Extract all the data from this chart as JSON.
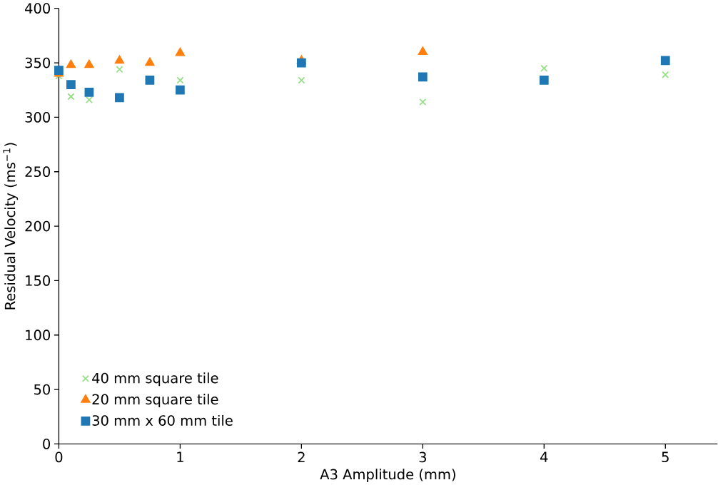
{
  "chart_data": {
    "type": "scatter",
    "xlabel": "A3 Amplitude (mm)",
    "ylabel": "Residual Velocity (ms$^{−1}$)",
    "xlim": [
      0,
      5.43
    ],
    "ylim": [
      0,
      400
    ],
    "xticks": [
      0,
      1,
      2,
      3,
      4,
      5
    ],
    "yticks": [
      0,
      50,
      100,
      150,
      200,
      250,
      300,
      350,
      400
    ],
    "legend": "bottom left",
    "grid": false,
    "series": [
      {
        "name": "40 mm square tile",
        "color": "#98df8a",
        "marker": "cross",
        "x": [
          0,
          0.1,
          0.25,
          0.5,
          1,
          2,
          3,
          4,
          5
        ],
        "values": [
          338,
          319,
          316,
          344,
          334,
          334,
          314,
          345,
          339
        ]
      },
      {
        "name": "20 mm square tile",
        "color": "#ff7f0e",
        "marker": "triangle",
        "x": [
          0,
          0.1,
          0.25,
          0.5,
          0.75,
          1,
          2,
          3
        ],
        "values": [
          340,
          348,
          348,
          352,
          350,
          359,
          352,
          360
        ]
      },
      {
        "name": "30 mm x 60 mm tile",
        "color": "#1f77b4",
        "marker": "square",
        "x": [
          0,
          0.1,
          0.25,
          0.5,
          0.75,
          1,
          2,
          3,
          4,
          5
        ],
        "values": [
          343,
          330,
          323,
          318,
          334,
          325,
          350,
          337,
          334,
          352
        ]
      }
    ]
  }
}
